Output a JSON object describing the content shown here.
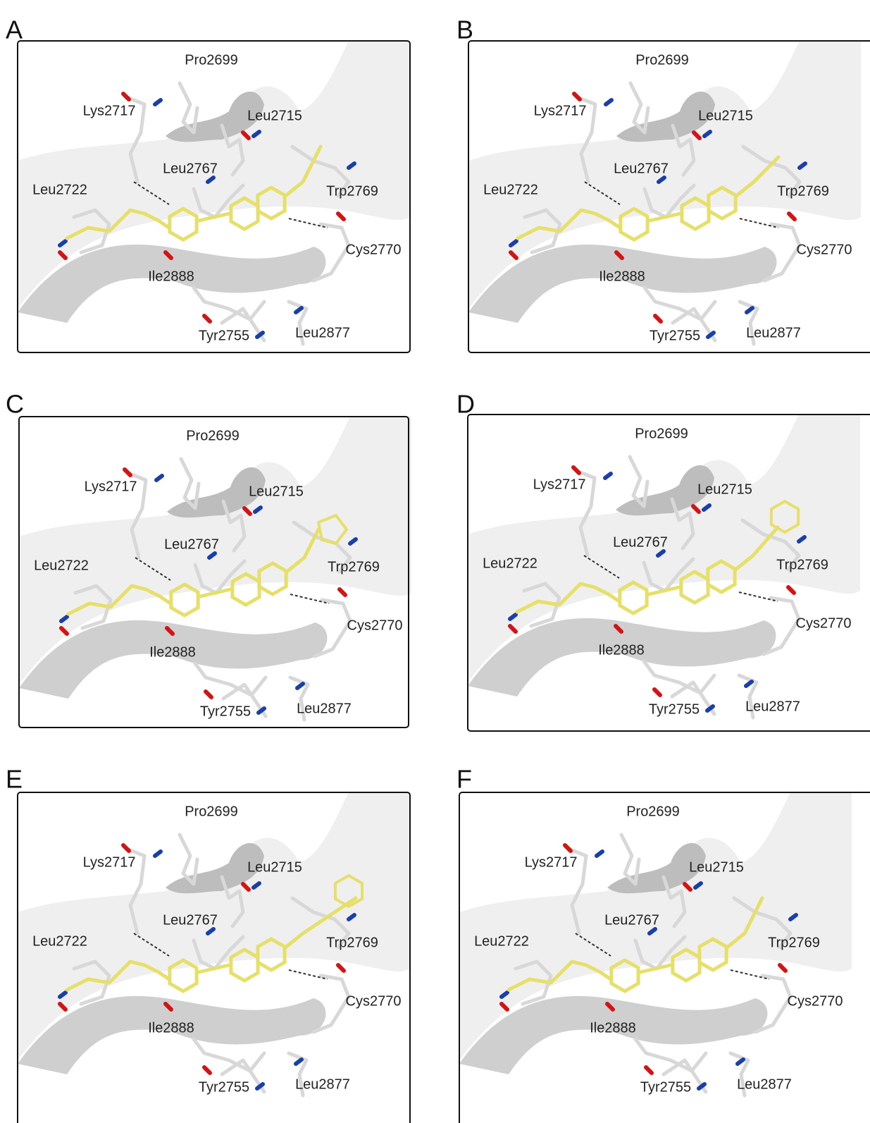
{
  "panels": [
    {
      "letter": "A",
      "labels": [
        "Pro2699",
        "Lys2717",
        "Leu2715",
        "Leu2767",
        "Leu2722",
        "Trp2769",
        "Cys2770",
        "Ile2888",
        "Tyr2755",
        "Leu2877"
      ]
    },
    {
      "letter": "B",
      "labels": [
        "Pro2699",
        "Lys2717",
        "Leu2715",
        "Leu2767",
        "Leu2722",
        "Trp2769",
        "Cys2770",
        "Ile2888",
        "Tyr2755",
        "Leu2877"
      ]
    },
    {
      "letter": "C",
      "labels": [
        "Pro2699",
        "Lys2717",
        "Leu2715",
        "Leu2767",
        "Leu2722",
        "Trp2769",
        "Cys2770",
        "Ile2888",
        "Tyr2755",
        "Leu2877"
      ]
    },
    {
      "letter": "D",
      "labels": [
        "Pro2699",
        "Lys2717",
        "Leu2715",
        "Leu2767",
        "Leu2722",
        "Trp2769",
        "Cys2770",
        "Ile2888",
        "Tyr2755",
        "Leu2877"
      ]
    },
    {
      "letter": "E",
      "labels": [
        "Pro2699",
        "Lys2717",
        "Leu2715",
        "Leu2767",
        "Leu2722",
        "Trp2769",
        "Cys2770",
        "Ile2888",
        "Tyr2755",
        "Leu2877"
      ]
    },
    {
      "letter": "F",
      "labels": [
        "Pro2699",
        "Lys2717",
        "Leu2715",
        "Leu2767",
        "Leu2722",
        "Trp2769",
        "Cys2770",
        "Ile2888",
        "Tyr2755",
        "Leu2877"
      ]
    }
  ]
}
